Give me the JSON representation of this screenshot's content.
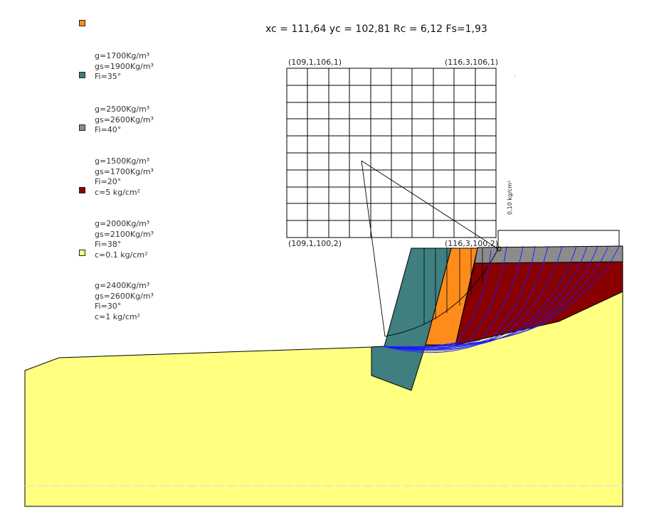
{
  "header": {
    "result_text": "xc = 111,64 yc = 102,81 Rc = 6,12 Fs=1,93"
  },
  "grid": {
    "corner_top_left": "(109,1,106,1)",
    "corner_top_right": "(116,3,106,1)",
    "corner_bottom_left": "(109,1,100,2)",
    "corner_bottom_right": "(116,3,100,2)"
  },
  "load_label": "0,10 kg/cm²",
  "legend": [
    {
      "color": "#ff8c1a",
      "lines": [
        "g=1700Kg/m³",
        "gs=1900Kg/m³",
        "Fi=35°"
      ]
    },
    {
      "color": "#3f7f80",
      "lines": [
        "g=2500Kg/m³",
        "gs=2600Kg/m³",
        "Fi=40°"
      ]
    },
    {
      "color": "#8c8c8c",
      "lines": [
        "g=1500Kg/m³",
        "gs=1700Kg/m³",
        "Fi=20°",
        "c=5 kg/cm²"
      ]
    },
    {
      "color": "#8b0000",
      "lines": [
        "g=2000Kg/m³",
        "gs=2100Kg/m³",
        "Fi=38°",
        "c=0.1 kg/cm²"
      ]
    },
    {
      "color": "#ffff80",
      "lines": [
        "g=2400Kg/m³",
        "gs=2600Kg/m³",
        "Fi=30°",
        "c=1 kg/cm²"
      ]
    }
  ]
}
